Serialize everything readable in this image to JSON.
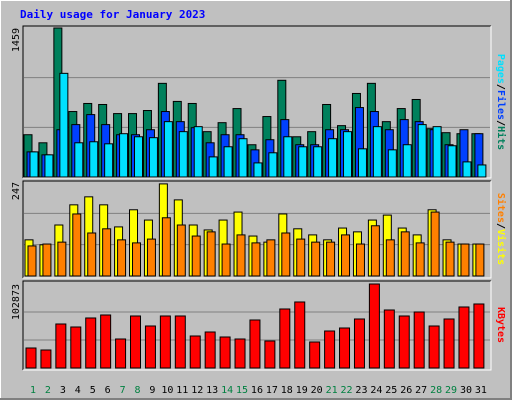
{
  "title": "Daily usage for January 2023",
  "legend_separator": "/",
  "categories": [
    "1",
    "2",
    "3",
    "4",
    "5",
    "6",
    "7",
    "8",
    "9",
    "10",
    "11",
    "12",
    "13",
    "14",
    "15",
    "16",
    "17",
    "18",
    "19",
    "20",
    "21",
    "22",
    "23",
    "24",
    "25",
    "26",
    "27",
    "28",
    "29",
    "30",
    "31"
  ],
  "category_colors": [
    "#008040",
    "#008040",
    "#000000",
    "#000000",
    "#000000",
    "#000000",
    "#008040",
    "#008040",
    "#000000",
    "#000000",
    "#000000",
    "#000000",
    "#000000",
    "#008040",
    "#008040",
    "#000000",
    "#000000",
    "#000000",
    "#000000",
    "#000000",
    "#008040",
    "#008040",
    "#000000",
    "#000000",
    "#000000",
    "#000000",
    "#000000",
    "#008040",
    "#008040",
    "#000000",
    "#000000"
  ],
  "chart_data": [
    {
      "type": "bar",
      "ylim": [
        0,
        1459
      ],
      "yticks": [
        1459
      ],
      "series": [
        {
          "name": "Hits",
          "color": "#00805c",
          "values": [
            414,
            335,
            1459,
            641,
            720,
            710,
            621,
            621,
            651,
            917,
            740,
            720,
            444,
            532,
            670,
            316,
            592,
            947,
            394,
            444,
            710,
            503,
            818,
            917,
            542,
            670,
            759,
            473,
            434,
            424,
            424
          ]
        },
        {
          "name": "Files",
          "color": "#0040ff",
          "values": [
            246,
            217,
            463,
            513,
            611,
            513,
            414,
            414,
            463,
            641,
            542,
            483,
            335,
            414,
            414,
            266,
            365,
            562,
            316,
            316,
            463,
            463,
            680,
            641,
            463,
            562,
            542,
            463,
            316,
            463,
            424
          ]
        },
        {
          "name": "Pages",
          "color": "#00e0ff",
          "values": [
            246,
            217,
            1015,
            335,
            345,
            325,
            424,
            394,
            385,
            542,
            444,
            493,
            197,
            296,
            375,
            138,
            237,
            394,
            296,
            296,
            375,
            444,
            276,
            493,
            266,
            316,
            513,
            493,
            306,
            148,
            118
          ]
        }
      ]
    },
    {
      "type": "bar",
      "ylim": [
        0,
        247
      ],
      "yticks": [
        247
      ],
      "series": [
        {
          "name": "Visits",
          "color": "#ffff00",
          "values": [
            95,
            82,
            134,
            187,
            208,
            187,
            129,
            174,
            147,
            242,
            200,
            134,
            121,
            147,
            168,
            105,
            89,
            163,
            124,
            108,
            95,
            126,
            116,
            147,
            160,
            126,
            108,
            174,
            95,
            84,
            84
          ]
        },
        {
          "name": "Sites",
          "color": "#ff8000",
          "values": [
            79,
            84,
            89,
            163,
            113,
            124,
            95,
            87,
            97,
            153,
            134,
            105,
            116,
            84,
            108,
            87,
            95,
            113,
            97,
            89,
            89,
            108,
            84,
            132,
            95,
            116,
            87,
            168,
            89,
            84,
            84
          ]
        }
      ]
    },
    {
      "type": "bar",
      "ylim": [
        0,
        102873
      ],
      "yticks": [
        102873
      ],
      "series": [
        {
          "name": "KBytes",
          "color": "#ff0000",
          "values": [
            24500,
            22050,
            53900,
            50225,
            61250,
            64925,
            35525,
            63700,
            51450,
            63700,
            63700,
            39200,
            44100,
            37975,
            35525,
            58800,
            33075,
            72275,
            80850,
            31850,
            45325,
            49000,
            60025,
            102873,
            71050,
            63700,
            68600,
            51450,
            60025,
            74725,
            78400
          ]
        }
      ]
    }
  ]
}
